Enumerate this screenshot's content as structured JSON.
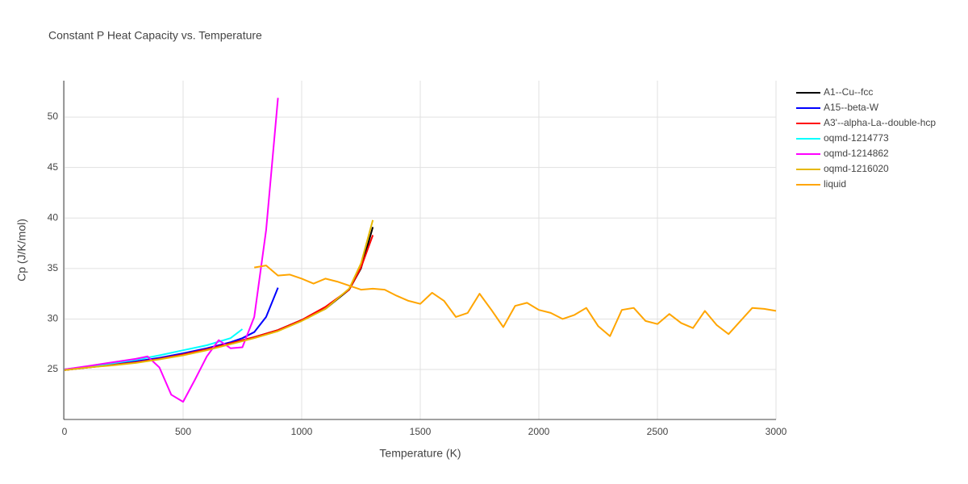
{
  "chart_data": {
    "type": "line",
    "title": "Constant P Heat Capacity vs. Temperature",
    "x_label": "Temperature (K)",
    "y_label": "Cp (J/K/mol)",
    "xlim": [
      0,
      3000
    ],
    "ylim": [
      20.05,
      53.6
    ],
    "xticks": [
      0,
      500,
      1000,
      1500,
      2000,
      2500,
      3000
    ],
    "yticks": [
      25,
      30,
      35,
      40,
      45,
      50
    ],
    "grid": true,
    "legend": "right",
    "series": [
      {
        "name": "A1--Cu--fcc",
        "color": "#000000",
        "x": [
          0,
          100,
          200,
          300,
          400,
          500,
          600,
          700,
          800,
          900,
          1000,
          1100,
          1200,
          1250,
          1300
        ],
        "values": [
          24.95,
          25.2,
          25.45,
          25.7,
          26.05,
          26.5,
          27.0,
          27.6,
          28.2,
          28.9,
          29.9,
          31.0,
          32.9,
          35.0,
          39.1
        ]
      },
      {
        "name": "A15--beta-W",
        "color": "#0000ff",
        "x": [
          0,
          100,
          200,
          300,
          400,
          500,
          600,
          700,
          750,
          800,
          850,
          900
        ],
        "values": [
          25.0,
          25.25,
          25.5,
          25.8,
          26.15,
          26.6,
          27.1,
          27.7,
          28.1,
          28.7,
          30.2,
          33.1
        ]
      },
      {
        "name": "A3'--alpha-La--double-hcp",
        "color": "#ff0000",
        "x": [
          0,
          100,
          200,
          300,
          400,
          500,
          600,
          700,
          800,
          900,
          1000,
          1100,
          1200,
          1250,
          1300
        ],
        "values": [
          24.95,
          25.2,
          25.45,
          25.7,
          26.05,
          26.5,
          27.0,
          27.6,
          28.2,
          28.9,
          29.9,
          31.2,
          32.9,
          35.1,
          38.3
        ]
      },
      {
        "name": "oqmd-1214773",
        "color": "#00ffff",
        "x": [
          0,
          100,
          200,
          300,
          400,
          500,
          600,
          700,
          750
        ],
        "values": [
          25.0,
          25.3,
          25.6,
          25.95,
          26.4,
          26.9,
          27.4,
          28.1,
          29.0
        ]
      },
      {
        "name": "oqmd-1214862",
        "color": "#ff00ff",
        "x": [
          0,
          100,
          200,
          300,
          350,
          400,
          450,
          500,
          550,
          600,
          650,
          700,
          750,
          800,
          850,
          900
        ],
        "values": [
          25.0,
          25.35,
          25.7,
          26.05,
          26.3,
          25.2,
          22.5,
          21.8,
          24.0,
          26.3,
          27.9,
          27.1,
          27.2,
          30.2,
          38.8,
          51.9
        ]
      },
      {
        "name": "oqmd-1216020",
        "color": "#e6b800",
        "x": [
          0,
          100,
          200,
          300,
          400,
          500,
          600,
          700,
          800,
          900,
          1000,
          1100,
          1200,
          1250,
          1300
        ],
        "values": [
          24.95,
          25.2,
          25.4,
          25.65,
          26.0,
          26.4,
          26.9,
          27.5,
          28.1,
          28.8,
          29.8,
          31.0,
          33.0,
          35.5,
          39.8
        ]
      },
      {
        "name": "liquid",
        "color": "#ffa500",
        "x": [
          800,
          850,
          900,
          950,
          1000,
          1050,
          1100,
          1150,
          1200,
          1250,
          1300,
          1350,
          1400,
          1450,
          1500,
          1550,
          1600,
          1650,
          1700,
          1750,
          1800,
          1850,
          1900,
          1950,
          2000,
          2050,
          2100,
          2150,
          2200,
          2250,
          2300,
          2350,
          2400,
          2450,
          2500,
          2550,
          2600,
          2650,
          2700,
          2750,
          2800,
          2850,
          2900,
          2950,
          3000
        ],
        "values": [
          35.1,
          35.3,
          34.3,
          34.4,
          34.0,
          33.5,
          34.0,
          33.7,
          33.3,
          32.9,
          33.0,
          32.9,
          32.3,
          31.8,
          31.5,
          32.6,
          31.8,
          30.2,
          30.6,
          32.5,
          30.9,
          29.2,
          31.3,
          31.6,
          30.9,
          30.6,
          30.0,
          30.4,
          31.1,
          29.3,
          28.3,
          30.9,
          31.1,
          29.8,
          29.5,
          30.5,
          29.6,
          29.1,
          30.8,
          29.4,
          28.5,
          29.8,
          31.1,
          31.0,
          30.8
        ]
      }
    ]
  }
}
